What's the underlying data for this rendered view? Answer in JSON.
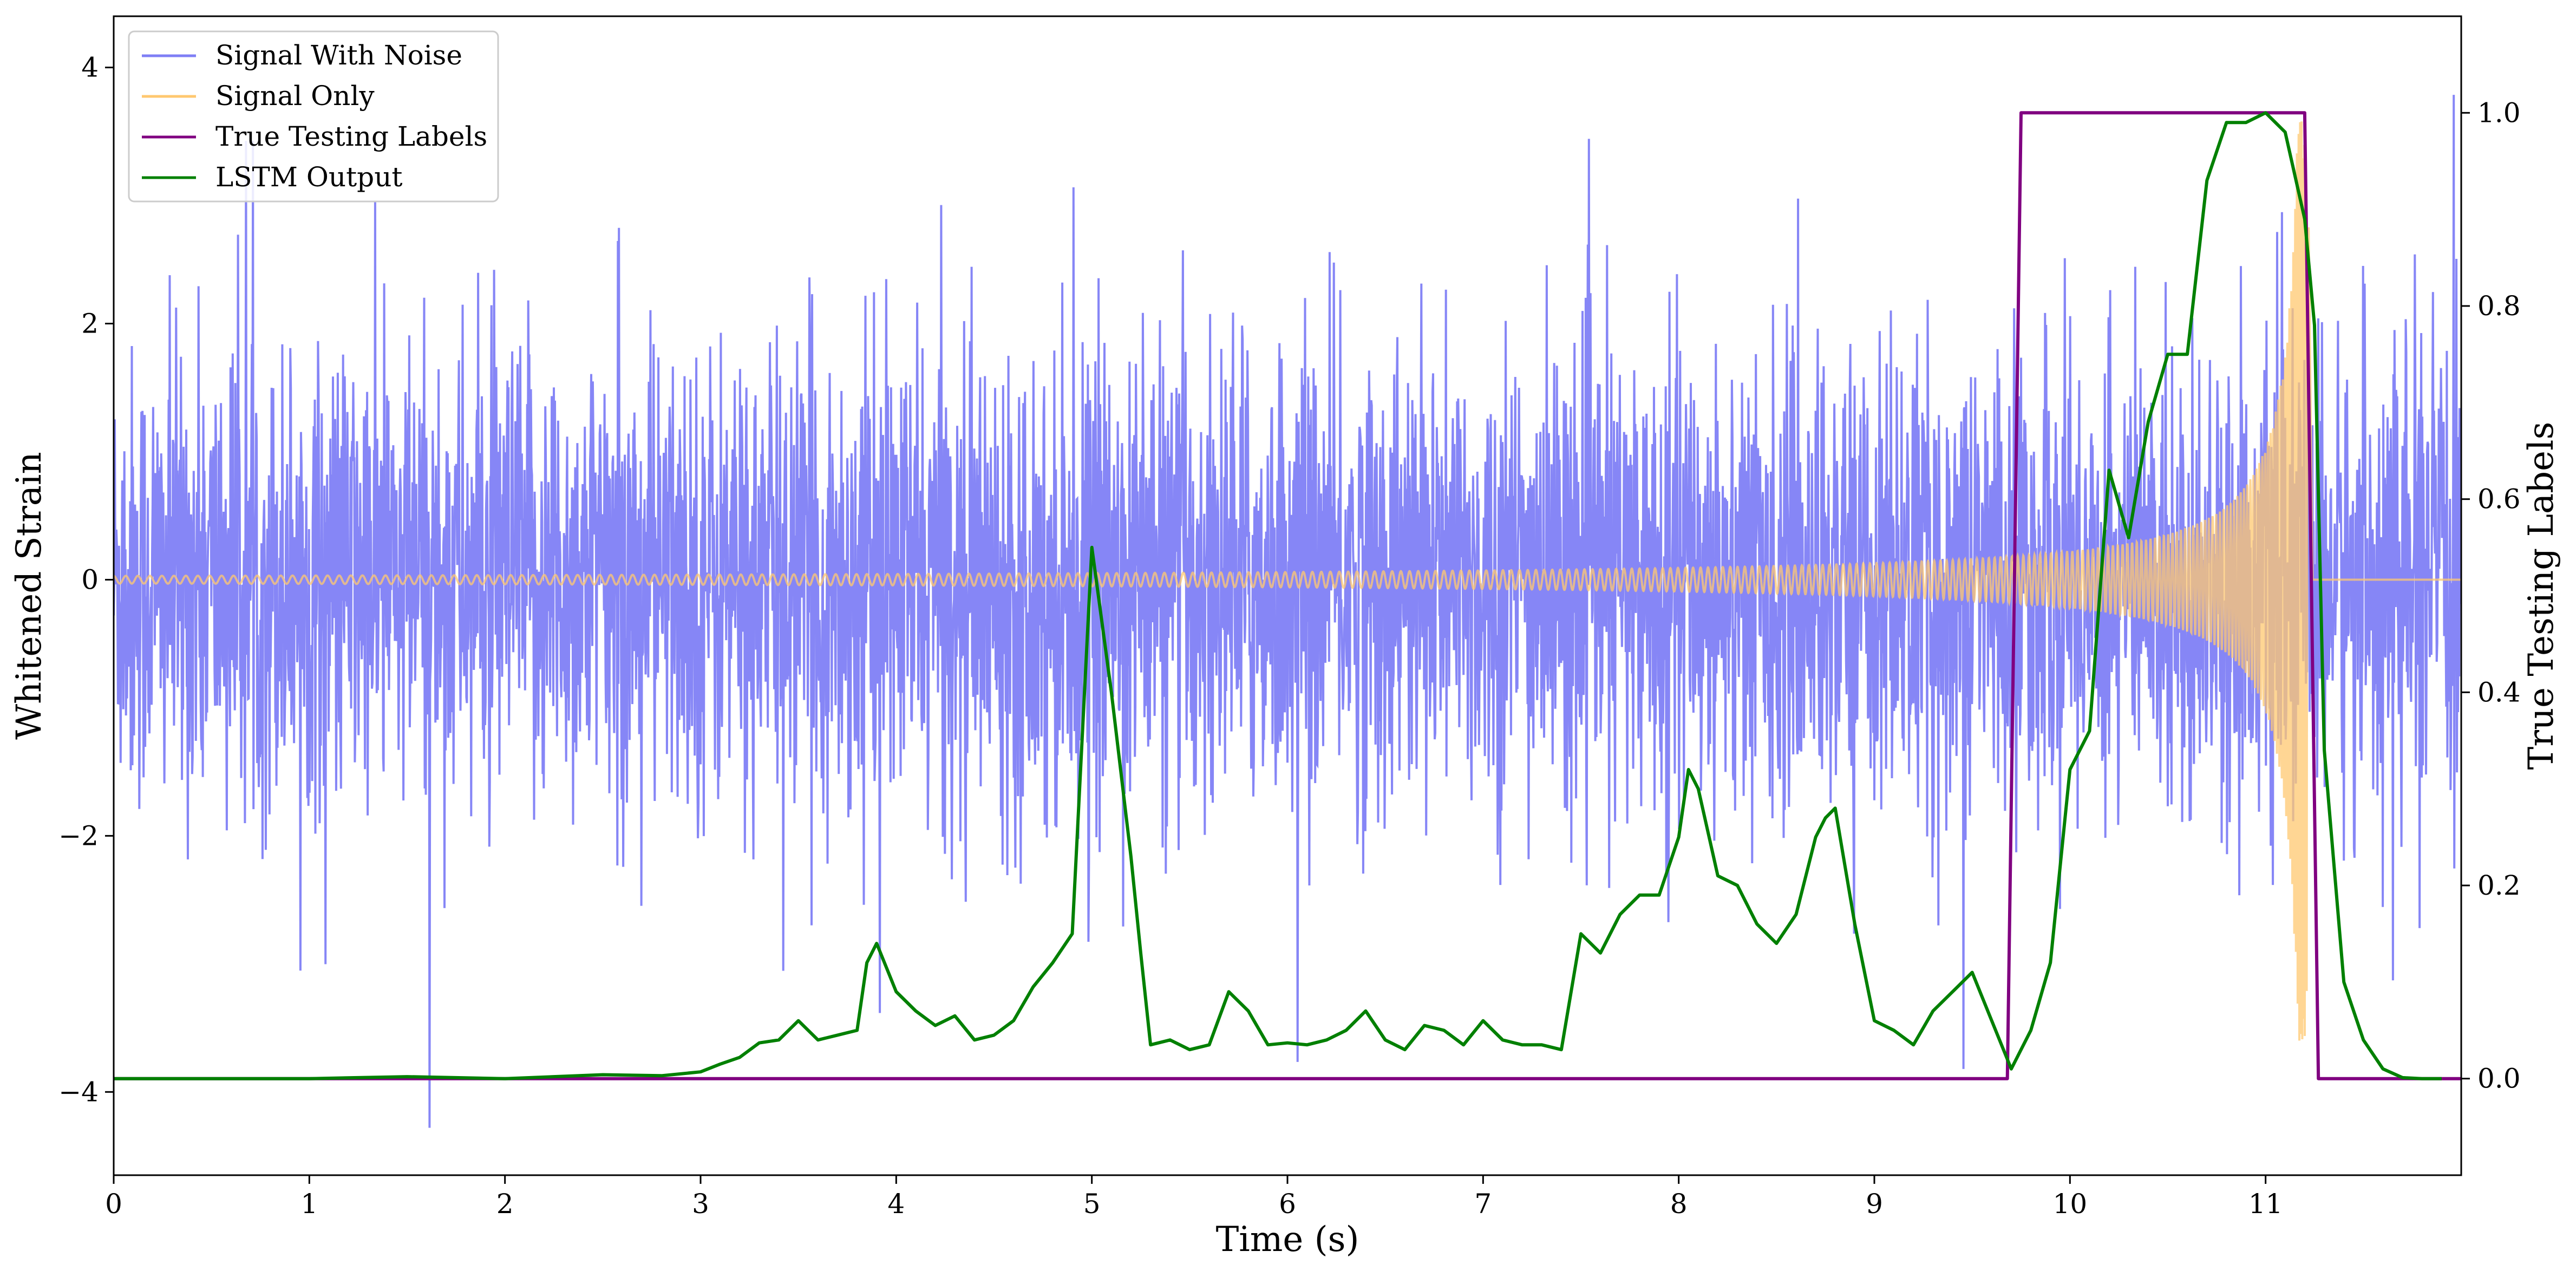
{
  "chart_data": {
    "type": "line",
    "xlabel": "Time (s)",
    "ylabel_left": "Whitened Strain",
    "ylabel_right": "True Testing Labels",
    "xlim": [
      0,
      12
    ],
    "ylim_left": [
      -4.65,
      4.4
    ],
    "ylim_right": [
      -0.1,
      1.1
    ],
    "x_ticks": [
      0,
      1,
      2,
      3,
      4,
      5,
      6,
      7,
      8,
      9,
      10,
      11
    ],
    "y_ticks_left": [
      -4,
      -2,
      0,
      2,
      4
    ],
    "y_ticks_left_labels": [
      "−4",
      "−2",
      "0",
      "2",
      "4"
    ],
    "y_ticks_right": [
      0.0,
      0.2,
      0.4,
      0.6,
      0.8,
      1.0
    ],
    "y_ticks_right_labels": [
      "0.0",
      "0.2",
      "0.4",
      "0.6",
      "0.8",
      "1.0"
    ],
    "grid": false,
    "legend_position": "top-left",
    "series": [
      {
        "name": "Signal With Noise",
        "axis": "left",
        "color": "#7f7ff5",
        "kind": "noise",
        "description_values": {
          "x_start": 0,
          "x_end": 12,
          "typical_std": 0.9,
          "max": 4.02,
          "min": -4.28
        }
      },
      {
        "name": "Signal Only",
        "axis": "left",
        "color": "#ffc870",
        "kind": "chirp",
        "description_values": {
          "x_start": 0,
          "x_end": 11.22,
          "amplitude_start": 0.03,
          "amplitude_end": 3.6
        }
      },
      {
        "name": "True Testing Labels",
        "axis": "right",
        "color": "#800080",
        "x": [
          0,
          9.68,
          9.75,
          11.2,
          11.27,
          12
        ],
        "y": [
          0,
          0,
          1,
          1,
          0,
          0
        ]
      },
      {
        "name": "LSTM Output",
        "axis": "right",
        "color": "#008000",
        "x": [
          0,
          1.0,
          1.5,
          2.0,
          2.5,
          2.8,
          3.0,
          3.1,
          3.2,
          3.3,
          3.4,
          3.5,
          3.6,
          3.7,
          3.8,
          3.85,
          3.9,
          4.0,
          4.1,
          4.2,
          4.3,
          4.4,
          4.5,
          4.6,
          4.7,
          4.8,
          4.9,
          5.0,
          5.1,
          5.2,
          5.25,
          5.3,
          5.4,
          5.5,
          5.6,
          5.7,
          5.8,
          5.9,
          6.0,
          6.1,
          6.2,
          6.3,
          6.4,
          6.5,
          6.6,
          6.7,
          6.8,
          6.9,
          7.0,
          7.1,
          7.2,
          7.3,
          7.4,
          7.5,
          7.6,
          7.7,
          7.8,
          7.9,
          8.0,
          8.05,
          8.1,
          8.2,
          8.3,
          8.4,
          8.5,
          8.6,
          8.7,
          8.75,
          8.8,
          8.9,
          9.0,
          9.1,
          9.2,
          9.3,
          9.4,
          9.5,
          9.6,
          9.7,
          9.8,
          9.9,
          10.0,
          10.1,
          10.2,
          10.3,
          10.4,
          10.5,
          10.6,
          10.7,
          10.8,
          10.9,
          11.0,
          11.1,
          11.2,
          11.25,
          11.3,
          11.4,
          11.5,
          11.6,
          11.7,
          11.8,
          11.9
        ],
        "y": [
          0.0,
          0.0,
          0.002,
          0.0,
          0.004,
          0.003,
          0.007,
          0.015,
          0.022,
          0.037,
          0.04,
          0.06,
          0.04,
          0.045,
          0.05,
          0.12,
          0.14,
          0.09,
          0.07,
          0.055,
          0.065,
          0.04,
          0.045,
          0.06,
          0.095,
          0.12,
          0.15,
          0.55,
          0.4,
          0.23,
          0.13,
          0.035,
          0.04,
          0.03,
          0.035,
          0.09,
          0.07,
          0.035,
          0.037,
          0.035,
          0.04,
          0.05,
          0.07,
          0.04,
          0.03,
          0.055,
          0.05,
          0.035,
          0.06,
          0.04,
          0.035,
          0.035,
          0.03,
          0.15,
          0.13,
          0.17,
          0.19,
          0.19,
          0.25,
          0.32,
          0.3,
          0.21,
          0.2,
          0.16,
          0.14,
          0.17,
          0.25,
          0.27,
          0.28,
          0.16,
          0.06,
          0.05,
          0.035,
          0.07,
          0.09,
          0.11,
          0.06,
          0.01,
          0.05,
          0.12,
          0.32,
          0.36,
          0.63,
          0.56,
          0.68,
          0.75,
          0.75,
          0.93,
          0.99,
          0.99,
          1.0,
          0.98,
          0.89,
          0.78,
          0.34,
          0.1,
          0.04,
          0.01,
          0.001,
          0.0,
          0.0
        ]
      }
    ]
  }
}
